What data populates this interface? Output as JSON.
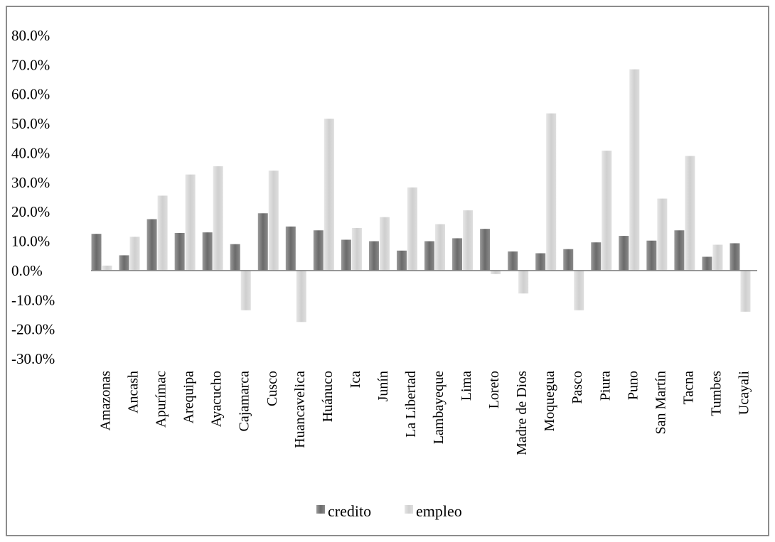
{
  "chart_data": {
    "type": "bar",
    "title": "",
    "xlabel": "",
    "ylabel": "",
    "ylim": [
      -0.3,
      0.8
    ],
    "y_ticks": [
      "80.0%",
      "70.0%",
      "60.0%",
      "50.0%",
      "40.0%",
      "30.0%",
      "20.0%",
      "10.0%",
      "0.0%",
      "-10.0%",
      "-20.0%",
      "-30.0%"
    ],
    "y_tick_values": [
      0.8,
      0.7,
      0.6,
      0.5,
      0.4,
      0.3,
      0.2,
      0.1,
      0.0,
      -0.1,
      -0.2,
      -0.3
    ],
    "grid": false,
    "legend_position": "bottom",
    "categories": [
      "Amazonas",
      "Ancash",
      "Apurímac",
      "Arequipa",
      "Ayacucho",
      "Cajamarca",
      "Cusco",
      "Huancavelica",
      "Huánuco",
      "Ica",
      "Junín",
      "La Libertad",
      "Lambayeque",
      "Lima",
      "Loreto",
      "Madre de Dios",
      "Moquegua",
      "Pasco",
      "Piura",
      "Puno",
      "San Martín",
      "Tacna",
      "Tumbes",
      "Ucayali"
    ],
    "series": [
      {
        "name": "credito",
        "color": "#6e6e6e",
        "values": [
          0.125,
          0.052,
          0.175,
          0.128,
          0.13,
          0.09,
          0.195,
          0.15,
          0.137,
          0.105,
          0.1,
          0.068,
          0.1,
          0.11,
          0.142,
          0.065,
          0.059,
          0.073,
          0.096,
          0.118,
          0.102,
          0.137,
          0.047,
          0.093
        ]
      },
      {
        "name": "empleo",
        "color": "#d6d6d6",
        "values": [
          0.017,
          0.115,
          0.255,
          0.327,
          0.355,
          -0.135,
          0.34,
          -0.175,
          0.517,
          0.145,
          0.182,
          0.283,
          0.158,
          0.205,
          -0.012,
          -0.078,
          0.535,
          -0.135,
          0.408,
          0.685,
          0.245,
          0.39,
          0.088,
          -0.14
        ]
      }
    ]
  }
}
